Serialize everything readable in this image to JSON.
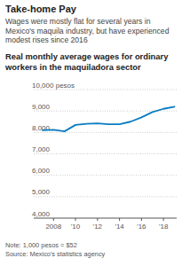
{
  "chart_data": {
    "type": "line",
    "title": "Take-home Pay",
    "subtitle": "Wages were mostly flat for several years in Mexico's maquila industry, but have experienced modest rises since 2016",
    "chart_title": "Real monthly average wages for ordinary workers in the maquiladora sector",
    "note": "Note: 1,000 pesos = $52",
    "source": "Source: Mexico's statistics agency",
    "x": [
      2007,
      2008,
      2009,
      2010,
      2011,
      2012,
      2013,
      2014,
      2015,
      2016,
      2017,
      2018,
      2019
    ],
    "values": [
      8100,
      8120,
      8050,
      8350,
      8400,
      8420,
      8380,
      8380,
      8500,
      8700,
      8950,
      9100,
      9200
    ],
    "color": "#0a7cc1",
    "xlim": [
      2006.2,
      2019.2
    ],
    "xticks": [
      2008,
      {
        "value": 2010,
        "label": "'10"
      },
      {
        "value": 2012,
        "label": "'12"
      },
      {
        "value": 2014,
        "label": "'14"
      },
      {
        "value": 2016,
        "label": "'16"
      },
      {
        "value": 2018,
        "label": "'18"
      }
    ],
    "ylim": [
      4000,
      10000
    ],
    "yticks": [
      {
        "value": 4000,
        "label": "4,000"
      },
      {
        "value": 5000,
        "label": "5,000"
      },
      {
        "value": 6000,
        "label": "6,000"
      },
      {
        "value": 7000,
        "label": "7,000"
      },
      {
        "value": 8000,
        "label": "8,000"
      },
      {
        "value": 9000,
        "label": "9,000"
      },
      {
        "value": 10000,
        "label": "10,000 pesos"
      }
    ],
    "grid": true
  }
}
